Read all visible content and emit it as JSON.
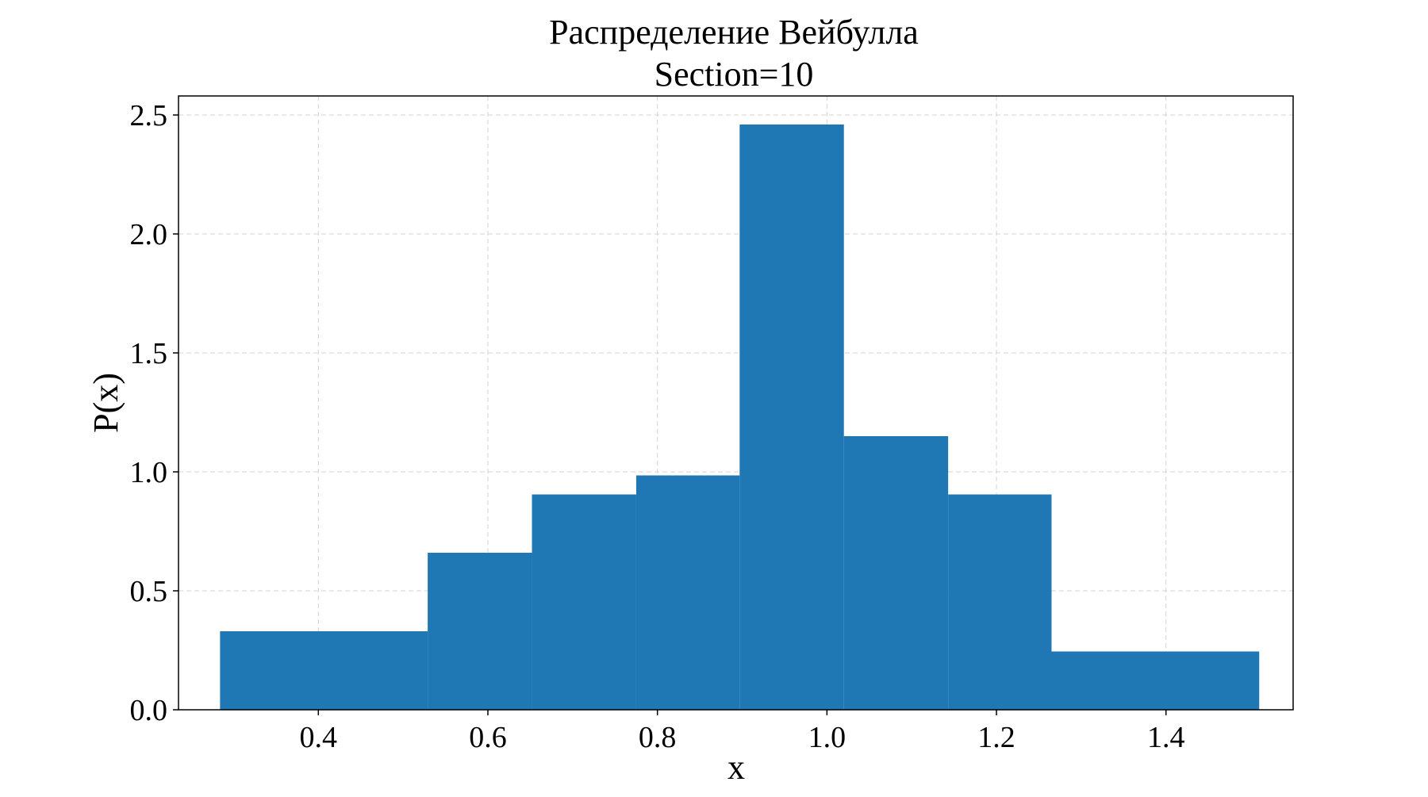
{
  "chart_data": {
    "type": "histogram",
    "title": "Распределение Вейбулла",
    "subtitle": "Section=10",
    "xlabel": "x",
    "ylabel": "P(x)",
    "xlim": [
      0.235,
      1.55
    ],
    "ylim": [
      0,
      2.58
    ],
    "grid": true,
    "x_ticks": [
      0.4,
      0.6,
      0.8,
      1.0,
      1.2,
      1.4
    ],
    "x_tick_labels": [
      "0.4",
      "0.6",
      "0.8",
      "1.0",
      "1.2",
      "1.4"
    ],
    "y_ticks": [
      0.0,
      0.5,
      1.0,
      1.5,
      2.0,
      2.5
    ],
    "y_tick_labels": [
      "0.0",
      "0.5",
      "1.0",
      "1.5",
      "2.0",
      "2.5"
    ],
    "bins": [
      {
        "x0": 0.284,
        "x1": 0.529,
        "value": 0.33
      },
      {
        "x0": 0.529,
        "x1": 0.652,
        "value": 0.66
      },
      {
        "x0": 0.652,
        "x1": 0.775,
        "value": 0.905
      },
      {
        "x0": 0.775,
        "x1": 0.897,
        "value": 0.985
      },
      {
        "x0": 0.897,
        "x1": 1.02,
        "value": 2.46
      },
      {
        "x0": 1.02,
        "x1": 1.143,
        "value": 1.15
      },
      {
        "x0": 1.143,
        "x1": 1.265,
        "value": 0.905
      },
      {
        "x0": 1.265,
        "x1": 1.51,
        "value": 0.245
      }
    ],
    "colors": {
      "bar": "#1f77b4",
      "grid": "#d3d3d3",
      "axis": "#000000"
    }
  }
}
